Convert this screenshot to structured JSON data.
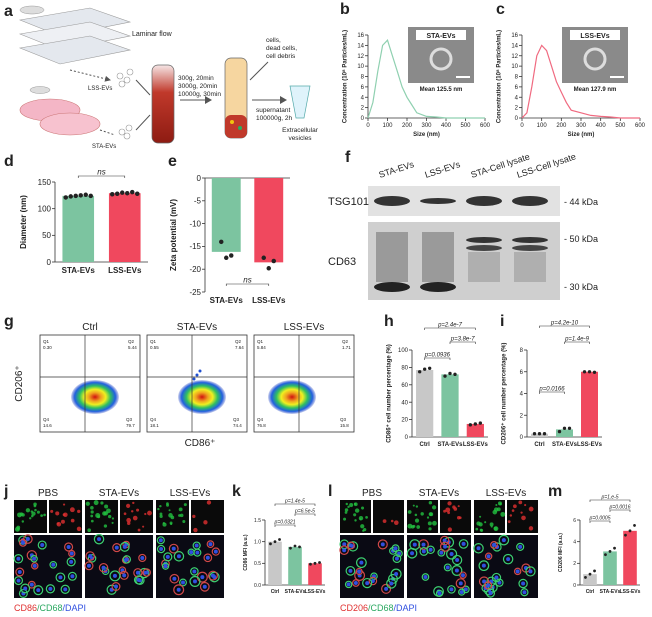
{
  "panel_labels": [
    "a",
    "b",
    "c",
    "d",
    "e",
    "f",
    "g",
    "h",
    "i",
    "j",
    "k",
    "l",
    "m"
  ],
  "schematic": {
    "flow": "Laminar flow",
    "lss": "LSS-EVs",
    "sta": "STA-EVs",
    "spin": [
      "300g, 20min",
      "3000g, 20min",
      "10000g, 30min"
    ],
    "waste": [
      "cells,",
      "dead cells,",
      "cell debris"
    ],
    "super": [
      "supernatant",
      "100000g, 2h"
    ],
    "product": [
      "Extracellular",
      "vesicles"
    ]
  },
  "chart_data": [
    {
      "type": "line",
      "ylabel": "Concentration (10⁸ Particles/mL)",
      "xlabel": "Size (nm)",
      "x": [
        0,
        25,
        50,
        75,
        100,
        125,
        150,
        175,
        200,
        225,
        250,
        300,
        350,
        400,
        450,
        500,
        550,
        600
      ],
      "values": [
        0,
        3,
        9,
        14,
        15,
        12,
        9,
        6,
        4,
        2.5,
        1,
        0.3,
        0.2,
        0,
        0,
        0,
        0,
        0
      ],
      "color": "#8fd0b0",
      "xlim": [
        0,
        600
      ],
      "xticks": [
        0,
        100,
        200,
        300,
        400,
        500,
        600
      ],
      "ylim": [
        0,
        16
      ],
      "yticks": [
        0,
        2,
        4,
        6,
        8,
        10,
        12,
        14,
        16
      ],
      "inset_title": "STA-EVs",
      "inset_color": "#6cc49b",
      "inset_mean": "Mean 125.5 nm"
    },
    {
      "type": "line",
      "ylabel": "Concentration (10⁸ Particles/mL)",
      "xlabel": "Size (nm)",
      "x": [
        0,
        25,
        50,
        75,
        100,
        125,
        150,
        175,
        200,
        225,
        250,
        300,
        350,
        400,
        450,
        500,
        550,
        600
      ],
      "values": [
        0,
        1,
        6,
        12,
        14,
        13,
        10,
        7,
        5,
        3,
        1.5,
        1,
        0.5,
        0.3,
        0.2,
        0,
        0,
        0
      ],
      "color": "#f06a80",
      "xlim": [
        0,
        600
      ],
      "xticks": [
        0,
        100,
        200,
        300,
        400,
        500,
        600
      ],
      "ylim": [
        0,
        16
      ],
      "yticks": [
        0,
        2,
        4,
        6,
        8,
        10,
        12,
        14,
        16
      ],
      "inset_title": "LSS-EVs",
      "inset_color": "#f0485e",
      "inset_mean": "Mean 127.9 nm"
    },
    {
      "type": "bar",
      "ylabel": "Diameter (nm)",
      "categories": [
        "STA-EVs",
        "LSS-EVs"
      ],
      "values": [
        124,
        129
      ],
      "colors": [
        "#7cc4a0",
        "#f0485e"
      ],
      "points": [
        [
          121,
          123,
          124,
          125,
          126,
          124
        ],
        [
          127,
          128,
          130,
          129,
          131,
          128
        ]
      ],
      "ylim": [
        0,
        150
      ],
      "yticks": [
        0,
        50,
        100,
        150
      ],
      "annotations": [
        "ns"
      ]
    },
    {
      "type": "bar",
      "ylabel": "Zeta potential (mV)",
      "categories": [
        "STA-EVs",
        "LSS-EVs"
      ],
      "values": [
        -16.2,
        -18.5
      ],
      "colors": [
        "#7cc4a0",
        "#f0485e"
      ],
      "points": [
        [
          -14,
          -17.5,
          -17
        ],
        [
          -17.5,
          -19.8,
          -18.2
        ]
      ],
      "ylim": [
        -25,
        0
      ],
      "yticks": [
        -25,
        -20,
        -15,
        -10,
        -5,
        0
      ],
      "annotations": [
        "ns"
      ]
    },
    {
      "type": "bar",
      "ylabel": "CD86⁺ cell number percentage (%)",
      "categories": [
        "Ctrl",
        "STA-EVs",
        "LSS-EVs"
      ],
      "values": [
        77,
        72,
        15
      ],
      "colors": [
        "#c8c8c8",
        "#7cc4a0",
        "#f0485e"
      ],
      "points": [
        [
          75,
          78,
          79
        ],
        [
          70,
          73,
          72
        ],
        [
          14,
          15,
          16
        ]
      ],
      "ylim": [
        0,
        100
      ],
      "yticks": [
        0,
        20,
        40,
        60,
        80,
        100
      ],
      "annotations": [
        "p=2.4e-7",
        "p=3.8e-7",
        "p=0.0936"
      ]
    },
    {
      "type": "bar",
      "ylabel": "CD206⁺ cell number percentage (%)",
      "categories": [
        "Ctrl",
        "STA-EVs",
        "LSS-EVs"
      ],
      "values": [
        0.3,
        0.7,
        6.0
      ],
      "colors": [
        "#c8c8c8",
        "#7cc4a0",
        "#f0485e"
      ],
      "points": [
        [
          0.3,
          0.3,
          0.3
        ],
        [
          0.5,
          0.8,
          0.8
        ],
        [
          6.0,
          6.0,
          5.95
        ]
      ],
      "ylim": [
        0,
        8
      ],
      "yticks": [
        0,
        2,
        4,
        6,
        8
      ],
      "annotations": [
        "p=4.2e-10",
        "p=1.4e-9",
        "p=0.0166"
      ]
    },
    {
      "type": "bar",
      "ylabel": "CD86 MFI (a.u.)",
      "categories": [
        "Ctrl",
        "STA-EVs",
        "LSS-EVs"
      ],
      "values": [
        1.0,
        0.88,
        0.5
      ],
      "colors": [
        "#c8c8c8",
        "#7cc4a0",
        "#f0485e"
      ],
      "points": [
        [
          0.95,
          1.0,
          1.05
        ],
        [
          0.85,
          0.9,
          0.88
        ],
        [
          0.48,
          0.5,
          0.52
        ]
      ],
      "ylim": [
        0,
        1.5
      ],
      "yticks": [
        {
          "value": 0,
          "label": "0.0"
        },
        {
          "value": 0.5,
          "label": "0.5"
        },
        {
          "value": 1,
          "label": "1.0"
        },
        {
          "value": 1.5,
          "label": "1.5"
        }
      ],
      "annotations": [
        "p=1.4e-5",
        "p=6.5e-5",
        "p=0.0321"
      ]
    },
    {
      "type": "bar",
      "ylabel": "CD206 MFI (a.u.)",
      "categories": [
        "Ctrl",
        "STA-EVs",
        "LSS-EVs"
      ],
      "values": [
        1.0,
        3.1,
        5.0
      ],
      "colors": [
        "#c8c8c8",
        "#7cc4a0",
        "#f0485e"
      ],
      "points": [
        [
          0.7,
          1.0,
          1.3
        ],
        [
          2.8,
          3.1,
          3.4
        ],
        [
          4.6,
          5.0,
          5.5
        ]
      ],
      "ylim": [
        0,
        6
      ],
      "yticks": [
        0,
        2,
        4,
        6
      ],
      "annotations": [
        "p=1.e-5",
        "p=0.0016",
        "p=0.0005"
      ]
    }
  ],
  "blot": {
    "lanes": [
      "STA-EVs",
      "LSS-EVs",
      "STA-Cell lysate",
      "LSS-Cell lysate"
    ],
    "proteins": [
      "TSG101",
      "CD63"
    ],
    "markers": [
      "- 44 kDa",
      "- 50 kDa",
      "- 30 kDa"
    ]
  },
  "flow": {
    "ylabel": "CD206⁺",
    "xlabel": "CD86⁺",
    "panels": [
      {
        "title": "Ctrl",
        "quadrants": [
          [
            "Q1",
            "0.30"
          ],
          [
            "Q2",
            "5.44"
          ],
          [
            "Q4",
            "14.6"
          ],
          [
            "Q3",
            "79.7"
          ]
        ]
      },
      {
        "title": "STA-EVs",
        "quadrants": [
          [
            "Q1",
            "0.55"
          ],
          [
            "Q2",
            "7.64"
          ],
          [
            "Q4",
            "18.1"
          ],
          [
            "Q3",
            "74.4"
          ]
        ]
      },
      {
        "title": "LSS-EVs",
        "quadrants": [
          [
            "Q1",
            "5.84"
          ],
          [
            "Q2",
            "1.71"
          ],
          [
            "Q4",
            "76.8"
          ],
          [
            "Q3",
            "15.8"
          ]
        ]
      }
    ]
  },
  "microscopy": [
    {
      "columns": [
        "PBS",
        "STA-EVs",
        "LSS-EVs"
      ],
      "caption": [
        "CD86",
        "/CD68",
        "/DAPI"
      ]
    },
    {
      "columns": [
        "PBS",
        "STA-EVs",
        "LSS-EVs"
      ],
      "caption": [
        "CD206",
        "/CD68",
        "/DAPI"
      ]
    }
  ]
}
